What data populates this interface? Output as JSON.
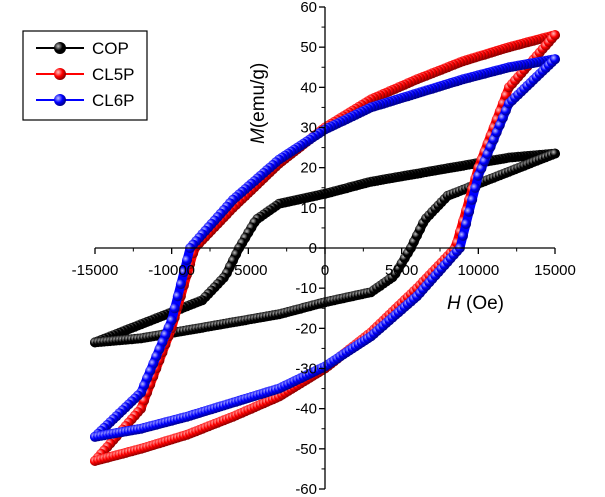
{
  "chart_data": {
    "type": "scatter",
    "subtype": "hysteresis-loop",
    "title": "",
    "xlabel": {
      "italic": "H",
      "rest": " (Oe)"
    },
    "ylabel": {
      "italic": "M",
      "rest": "(emu/g)"
    },
    "xlim": [
      -15000,
      15000
    ],
    "ylim": [
      -60,
      60
    ],
    "xticks": [
      -15000,
      -10000,
      -5000,
      0,
      5000,
      10000,
      15000
    ],
    "xtick_labels": [
      "-15000",
      "-10000",
      "-5000",
      "0",
      "5000",
      "10000",
      "15000"
    ],
    "yticks": [
      -60,
      -50,
      -40,
      -30,
      -20,
      -10,
      0,
      10,
      20,
      30,
      40,
      50,
      60
    ],
    "ytick_labels": [
      "-60",
      "-50",
      "-40",
      "-30",
      "-20",
      "-10",
      "0",
      "10",
      "20",
      "30",
      "40",
      "50",
      "60"
    ],
    "axes_style": "crossing-at-origin",
    "grid": false,
    "legend": {
      "position": "top-left",
      "entries": [
        "COP",
        "CL5P",
        "CL6P"
      ]
    },
    "series": [
      {
        "name": "COP",
        "color": "#000000",
        "saturation_magnetization": 23.5,
        "remanence": 13.5,
        "coercivity": 5600,
        "x_range": [
          -15000,
          15000
        ],
        "descending_branch": {
          "x": [
            15000,
            12000,
            9000,
            6000,
            3000,
            0,
            -3000,
            -4500,
            -5600,
            -6500,
            -8000,
            -11000,
            -15000
          ],
          "y": [
            23.5,
            22.5,
            20.5,
            18.5,
            16.5,
            13.5,
            11,
            7,
            0,
            -7,
            -13,
            -17.5,
            -23.5
          ]
        },
        "ascending_branch": {
          "x": [
            -15000,
            -12000,
            -9000,
            -6000,
            -3000,
            0,
            3000,
            4500,
            5600,
            6500,
            8000,
            11000,
            15000
          ],
          "y": [
            -23.5,
            -22.5,
            -20.5,
            -18.5,
            -16.5,
            -13.5,
            -11,
            -7,
            0,
            7,
            13,
            17.5,
            23.5
          ]
        }
      },
      {
        "name": "CL5P",
        "color": "#ff0000",
        "saturation_magnetization": 53,
        "remanence": 30,
        "coercivity": 8500,
        "x_range": [
          -15000,
          15000
        ],
        "descending_branch": {
          "x": [
            15000,
            12000,
            9000,
            6000,
            3000,
            0,
            -3000,
            -6000,
            -8500,
            -10000,
            -12000,
            -15000
          ],
          "y": [
            53,
            50,
            46.5,
            42,
            37,
            30,
            21,
            10,
            0,
            -20,
            -40,
            -53
          ]
        },
        "ascending_branch": {
          "x": [
            -15000,
            -12000,
            -9000,
            -6000,
            -3000,
            0,
            3000,
            6000,
            8500,
            10000,
            12000,
            15000
          ],
          "y": [
            -53,
            -50,
            -46.5,
            -42,
            -37,
            -30,
            -21,
            -10,
            0,
            20,
            40,
            53
          ]
        }
      },
      {
        "name": "CL6P",
        "color": "#0000ff",
        "saturation_magnetization": 47,
        "remanence": 29.5,
        "coercivity": 8800,
        "x_range": [
          -15000,
          15000
        ],
        "descending_branch": {
          "x": [
            15000,
            12000,
            9000,
            6000,
            3000,
            0,
            -3000,
            -6000,
            -8800,
            -10000,
            -12000,
            -15000
          ],
          "y": [
            47,
            45,
            42,
            38.5,
            35,
            29.5,
            22,
            12,
            0,
            -18,
            -36,
            -47
          ]
        },
        "ascending_branch": {
          "x": [
            -15000,
            -12000,
            -9000,
            -6000,
            -3000,
            0,
            3000,
            6000,
            8800,
            10000,
            12000,
            15000
          ],
          "y": [
            -47,
            -45,
            -42,
            -38.5,
            -35,
            -29.5,
            -22,
            -12,
            0,
            18,
            36,
            47
          ]
        }
      }
    ]
  }
}
